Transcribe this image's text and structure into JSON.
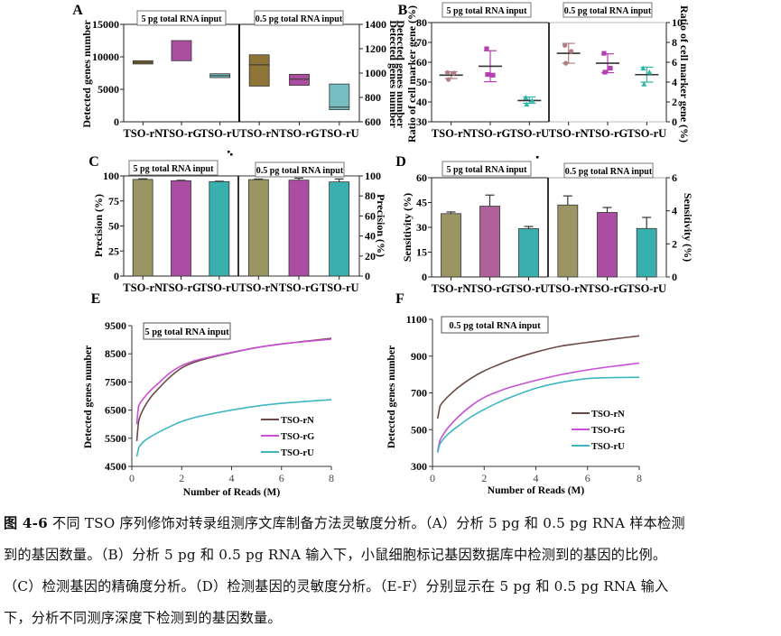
{
  "figure": {
    "figure_number": "图 4-6",
    "caption_lines": [
      "不同 TSO 序列修饰对转录组测序文库制备方法灵敏度分析。（A）分析 5 pg 和 0.5 pg RNA 样本检测",
      "到的基因数量。（B）分析 5 pg 和 0.5 pg RNA 输入下，小鼠细胞标记基因数据库中检测到的基因的比例。",
      "（C）检测基因的精确度分析。（D）检测基因的灵敏度分析。（E-F）分别显示在 5 pg 和 0.5 pg RNA 输入",
      "下，分析不同测序深度下检测到的基因数量。"
    ]
  },
  "colors": {
    "rN": "#7a5c14",
    "rG": "#9b2f8f",
    "rU": "#5fb3b8",
    "rG_light": "#c85a9a",
    "rN_point": "#b07f86",
    "rG_point": "#b43fb0",
    "rU_point": "#2fb4a8",
    "bar_rN": "#9a9563",
    "bar_rG": "#ab4ea3",
    "bar_rU": "#3ab0ae",
    "bar_rG_D": "#b06199",
    "line_rN": "#6b4a45",
    "line_rG": "#c94fd6",
    "line_rU": "#3db6c2"
  },
  "chart_data": [
    {
      "panel": "A",
      "type": "bar",
      "subtype": "floating-box",
      "categories": [
        "TSO-rN",
        "TSO-rG",
        "TSO-rU",
        "TSO-rN",
        "TSO-rG",
        "TSO-rU"
      ],
      "groups": [
        "5 pg total RNA input",
        "0.5 pg total RNA input"
      ],
      "ylabel_left": "Detected genes number",
      "ylabel_right": "Detected genes number",
      "ylim_left": [
        0,
        15000
      ],
      "yticks_left": [
        "0",
        "5000",
        "10000",
        "15000"
      ],
      "ylim_right": [
        600,
        1400
      ],
      "yticks_right": [
        "600",
        "800",
        "1000",
        "1200",
        "1400"
      ],
      "series": [
        {
          "name": "5 pg",
          "axis": "left",
          "boxes": [
            {
              "cat": "TSO-rN",
              "min": 8900,
              "max": 9400,
              "mid": 9150
            },
            {
              "cat": "TSO-rG",
              "min": 9400,
              "max": 12500,
              "mid": null
            },
            {
              "cat": "TSO-rU",
              "min": 6800,
              "max": 7400,
              "mid": 7100
            }
          ]
        },
        {
          "name": "0.5 pg",
          "axis": "right",
          "boxes": [
            {
              "cat": "TSO-rN",
              "min": 893,
              "max": 1150,
              "mid": 1068
            },
            {
              "cat": "TSO-rG",
              "min": 900,
              "max": 990,
              "mid": 950
            },
            {
              "cat": "TSO-rU",
              "min": 700,
              "max": 910,
              "mid": 720
            }
          ]
        }
      ]
    },
    {
      "panel": "B",
      "type": "scatter",
      "categories": [
        "TSO-rN",
        "TSO-rG",
        "TSO-rU",
        "TSO-rN",
        "TSO-rG",
        "TSO-rU"
      ],
      "groups": [
        "5 pg total RNA input",
        "0.5 pg total RNA input"
      ],
      "ylabel_left": "Ratio of cell marker gene (%)",
      "ylabel_right": "Ratio of cell marker gene (%)",
      "overlap_label": "Detected genes number",
      "ylim_left": [
        30,
        80
      ],
      "yticks_left": [
        "30",
        "40",
        "50",
        "60",
        "70",
        "80"
      ],
      "ylim_right": [
        0,
        10
      ],
      "yticks_right": [
        "0",
        "2",
        "4",
        "6",
        "8",
        "10"
      ],
      "series": [
        {
          "name": "5 pg",
          "axis": "left",
          "groups": [
            {
              "cat": "TSO-rN",
              "marker": "circle",
              "points": [
                54.8,
                54.5,
                51.3
              ],
              "mean": 53.5,
              "err_low": 51.8,
              "err_high": 55.2
            },
            {
              "cat": "TSO-rG",
              "marker": "square",
              "points": [
                66.8,
                53.5,
                53.8
              ],
              "mean": 58.0,
              "err_low": 50.2,
              "err_high": 65.8
            },
            {
              "cat": "TSO-rU",
              "marker": "triangle",
              "points": [
                42.3,
                40.8,
                38.8
              ],
              "mean": 40.7,
              "err_low": 39.3,
              "err_high": 42.5
            }
          ]
        },
        {
          "name": "0.5 pg",
          "axis": "right",
          "groups": [
            {
              "cat": "TSO-rN",
              "marker": "circle",
              "points": [
                7.7,
                7.1,
                5.9
              ],
              "mean": 6.9,
              "err_low": 5.9,
              "err_high": 7.9
            },
            {
              "cat": "TSO-rG",
              "marker": "square",
              "points": [
                6.9,
                5.4,
                5.0
              ],
              "mean": 5.9,
              "err_low": 4.95,
              "err_high": 6.85
            },
            {
              "cat": "TSO-rU",
              "marker": "triangle",
              "points": [
                5.4,
                5.0,
                3.8
              ],
              "mean": 4.75,
              "err_low": 4.0,
              "err_high": 5.5
            }
          ]
        }
      ]
    },
    {
      "panel": "C",
      "type": "bar",
      "categories": [
        "TSO-rN",
        "TSO-rG",
        "TSO-rU",
        "TSO-rN",
        "TSO-rG",
        "TSO-rU"
      ],
      "groups": [
        "5 pg total RNA input",
        "0.5 pg total RNA input"
      ],
      "ylabel_left": "Precision (%)",
      "ylabel_right": "Precision (%)",
      "ylim_left": [
        0,
        100
      ],
      "yticks_left": [
        "0",
        "25",
        "50",
        "75",
        "100"
      ],
      "ylim_right": [
        0,
        100
      ],
      "yticks_right": [
        "0",
        "20",
        "40",
        "60",
        "80",
        "100"
      ],
      "series": [
        {
          "name": "5 pg",
          "axis": "left",
          "values": [
            96.5,
            95.2,
            94.3
          ],
          "errors": [
            0.6,
            0.4,
            0.4
          ]
        },
        {
          "name": "0.5 pg",
          "axis": "right",
          "values": [
            96.3,
            95.8,
            94.0
          ],
          "errors": [
            0.6,
            2.0,
            3.0
          ]
        }
      ]
    },
    {
      "panel": "D",
      "type": "bar",
      "categories": [
        "TSO-rN",
        "TSO-rG",
        "TSO-rU",
        "TSO-rN",
        "TSO-rG",
        "TSO-rU"
      ],
      "groups": [
        "5 pg total RNA input",
        "0.5 pg total RNA input"
      ],
      "ylabel_left": "Sensitivity (%)",
      "ylabel_right": "Sensitivity (%)",
      "ylim_left": [
        0,
        60
      ],
      "yticks_left": [
        "0",
        "15",
        "30",
        "45",
        "60"
      ],
      "ylim_right": [
        0,
        6
      ],
      "yticks_right": [
        "0",
        "2",
        "4",
        "6"
      ],
      "series": [
        {
          "name": "5 pg",
          "axis": "left",
          "values": [
            38.3,
            42.8,
            29.2
          ],
          "errors": [
            1.0,
            6.7,
            1.3
          ]
        },
        {
          "name": "0.5 pg",
          "axis": "right",
          "values": [
            4.35,
            3.9,
            2.93
          ],
          "errors": [
            0.55,
            0.3,
            0.67
          ]
        }
      ]
    },
    {
      "panel": "E",
      "type": "line",
      "title": "5 pg total RNA input",
      "xlabel": "Number of Reads (M)",
      "ylabel": "Detected genes number",
      "xlim": [
        0,
        8
      ],
      "xticks": [
        "0",
        "2",
        "4",
        "6",
        "8"
      ],
      "ylim": [
        4500,
        9500
      ],
      "yticks": [
        "4500",
        "5500",
        "6500",
        "7500",
        "8500",
        "9500"
      ],
      "legend": "bottom-right",
      "series": [
        {
          "name": "TSO-rN",
          "x": [
            0.2,
            0.25,
            0.3,
            0.5,
            0.75,
            1,
            1.5,
            2,
            2.5,
            3,
            4,
            5,
            6,
            7,
            8
          ],
          "y": [
            5400,
            5900,
            6200,
            6600,
            6950,
            7200,
            7650,
            8000,
            8200,
            8330,
            8540,
            8720,
            8850,
            8950,
            9050
          ]
        },
        {
          "name": "TSO-rG",
          "x": [
            0.2,
            0.25,
            0.3,
            0.5,
            0.75,
            1,
            1.5,
            2,
            2.5,
            3,
            4,
            5,
            6,
            7,
            8
          ],
          "y": [
            6000,
            6500,
            6700,
            6950,
            7200,
            7400,
            7800,
            8080,
            8250,
            8360,
            8550,
            8720,
            8850,
            8940,
            9020
          ]
        },
        {
          "name": "TSO-rU",
          "x": [
            0.2,
            0.25,
            0.3,
            0.5,
            0.75,
            1,
            1.5,
            2,
            2.5,
            3,
            4,
            5,
            6,
            7,
            8
          ],
          "y": [
            4850,
            5050,
            5200,
            5400,
            5550,
            5680,
            5900,
            6100,
            6230,
            6330,
            6500,
            6640,
            6740,
            6810,
            6870
          ]
        }
      ]
    },
    {
      "panel": "F",
      "type": "line",
      "title": "0.5 pg total RNA input",
      "xlabel": "Number of Reads (M)",
      "ylabel": "Detected genes number",
      "xlim": [
        0,
        8
      ],
      "xticks": [
        "0",
        "2",
        "4",
        "6",
        "8"
      ],
      "ylim": [
        300,
        1100
      ],
      "yticks": [
        "300",
        "500",
        "700",
        "900",
        "1100"
      ],
      "legend": "bottom-right",
      "series": [
        {
          "name": "TSO-rN",
          "x": [
            0.2,
            0.25,
            0.3,
            0.4,
            0.6,
            1,
            1.5,
            2,
            2.5,
            3,
            4,
            5,
            6,
            7,
            8
          ],
          "y": [
            560,
            600,
            630,
            650,
            680,
            730,
            780,
            820,
            850,
            878,
            922,
            955,
            975,
            993,
            1010
          ]
        },
        {
          "name": "TSO-rG",
          "x": [
            0.2,
            0.25,
            0.3,
            0.4,
            0.6,
            1,
            1.5,
            2,
            2.5,
            3,
            4,
            5,
            6,
            7,
            8
          ],
          "y": [
            380,
            420,
            445,
            470,
            510,
            570,
            630,
            675,
            705,
            730,
            768,
            800,
            825,
            845,
            862
          ]
        },
        {
          "name": "TSO-rU",
          "x": [
            0.2,
            0.25,
            0.3,
            0.4,
            0.6,
            1,
            1.5,
            2,
            2.5,
            3,
            4,
            5,
            6,
            7,
            8
          ],
          "y": [
            375,
            405,
            425,
            445,
            475,
            520,
            570,
            610,
            645,
            675,
            725,
            758,
            778,
            783,
            785
          ]
        }
      ]
    }
  ]
}
